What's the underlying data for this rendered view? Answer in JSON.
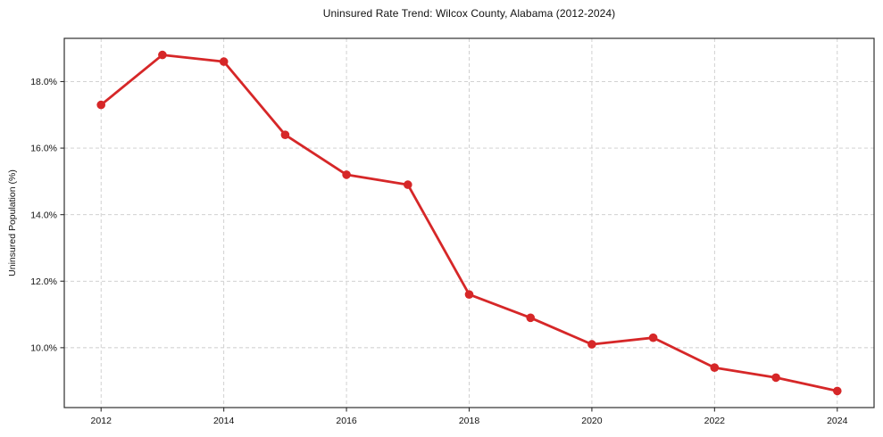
{
  "chart_data": {
    "type": "line",
    "title": "Uninsured Rate Trend: Wilcox County, Alabama (2012-2024)",
    "xlabel": "",
    "ylabel": "Uninsured Population (%)",
    "x": [
      2012,
      2013,
      2014,
      2015,
      2016,
      2017,
      2018,
      2019,
      2020,
      2021,
      2022,
      2023,
      2024
    ],
    "series": [
      {
        "name": "Uninsured rate",
        "values": [
          17.3,
          18.8,
          18.6,
          16.4,
          15.2,
          14.9,
          11.6,
          10.9,
          10.1,
          10.3,
          9.4,
          9.1,
          8.7
        ]
      }
    ],
    "xlim": [
      2011.4,
      2024.6
    ],
    "ylim": [
      8.2,
      19.3
    ],
    "xticks": [
      2012,
      2014,
      2016,
      2018,
      2020,
      2022,
      2024
    ],
    "yticks": [
      10,
      12,
      14,
      16,
      18
    ],
    "ytick_suffix": "%",
    "ytick_decimals": 1,
    "grid": true,
    "grid_style": "dashed",
    "legend_position": "none",
    "colors": {
      "line": "#d62728",
      "marker": "#d62728",
      "grid": "#cccccc",
      "spine": "#2e2e2e",
      "tick": "#2e2e2e",
      "text": "#111111",
      "background": "#ffffff"
    }
  }
}
